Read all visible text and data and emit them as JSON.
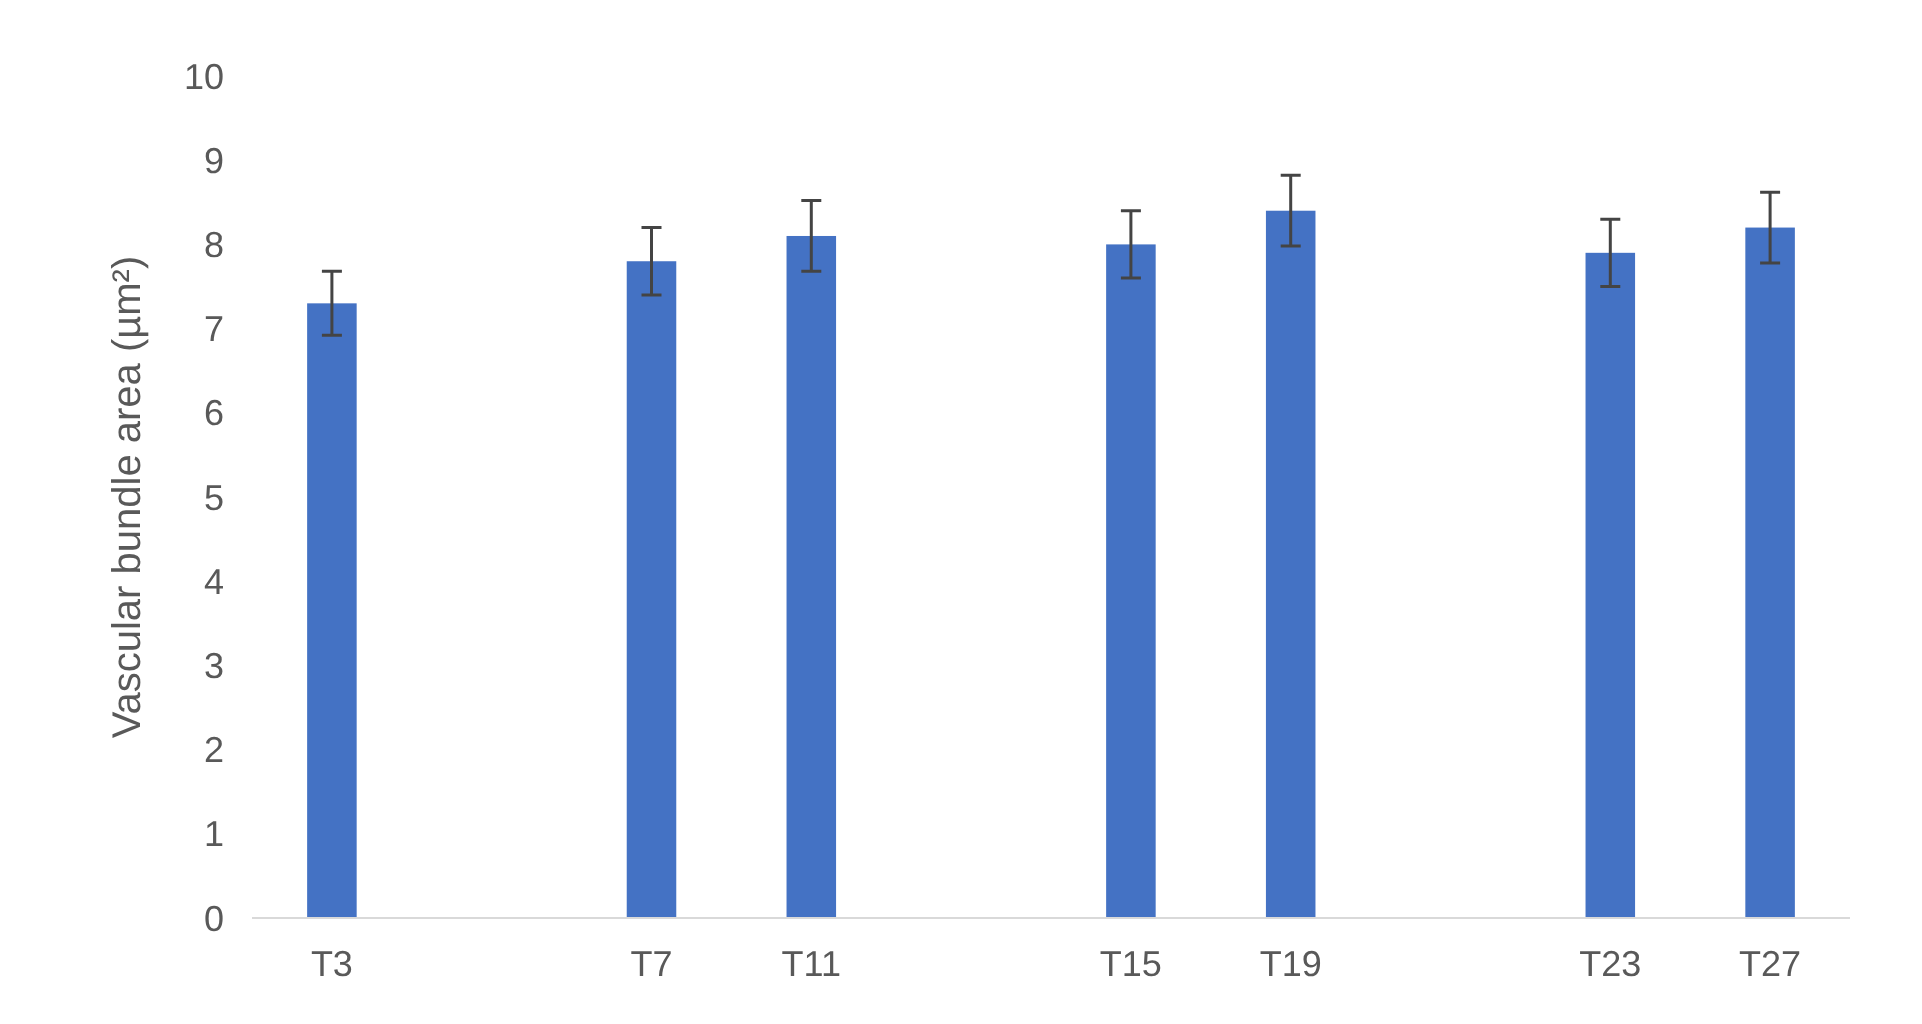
{
  "chart_data": {
    "type": "bar",
    "ylabel": "Vascular bundle area (µm²)",
    "categories": [
      "T3",
      null,
      "T7",
      "T11",
      null,
      "T15",
      "T19",
      null,
      "T23",
      "T27"
    ],
    "values": [
      7.3,
      null,
      7.8,
      8.1,
      null,
      8.0,
      8.4,
      null,
      7.9,
      8.2
    ],
    "errors": [
      0.38,
      null,
      0.4,
      0.42,
      null,
      0.4,
      0.42,
      null,
      0.4,
      0.42
    ],
    "color": "#4472c4",
    "ylim": [
      0,
      10
    ],
    "yticks": [
      0,
      1,
      2,
      3,
      4,
      5,
      6,
      7,
      8,
      9,
      10
    ],
    "grid": false
  }
}
